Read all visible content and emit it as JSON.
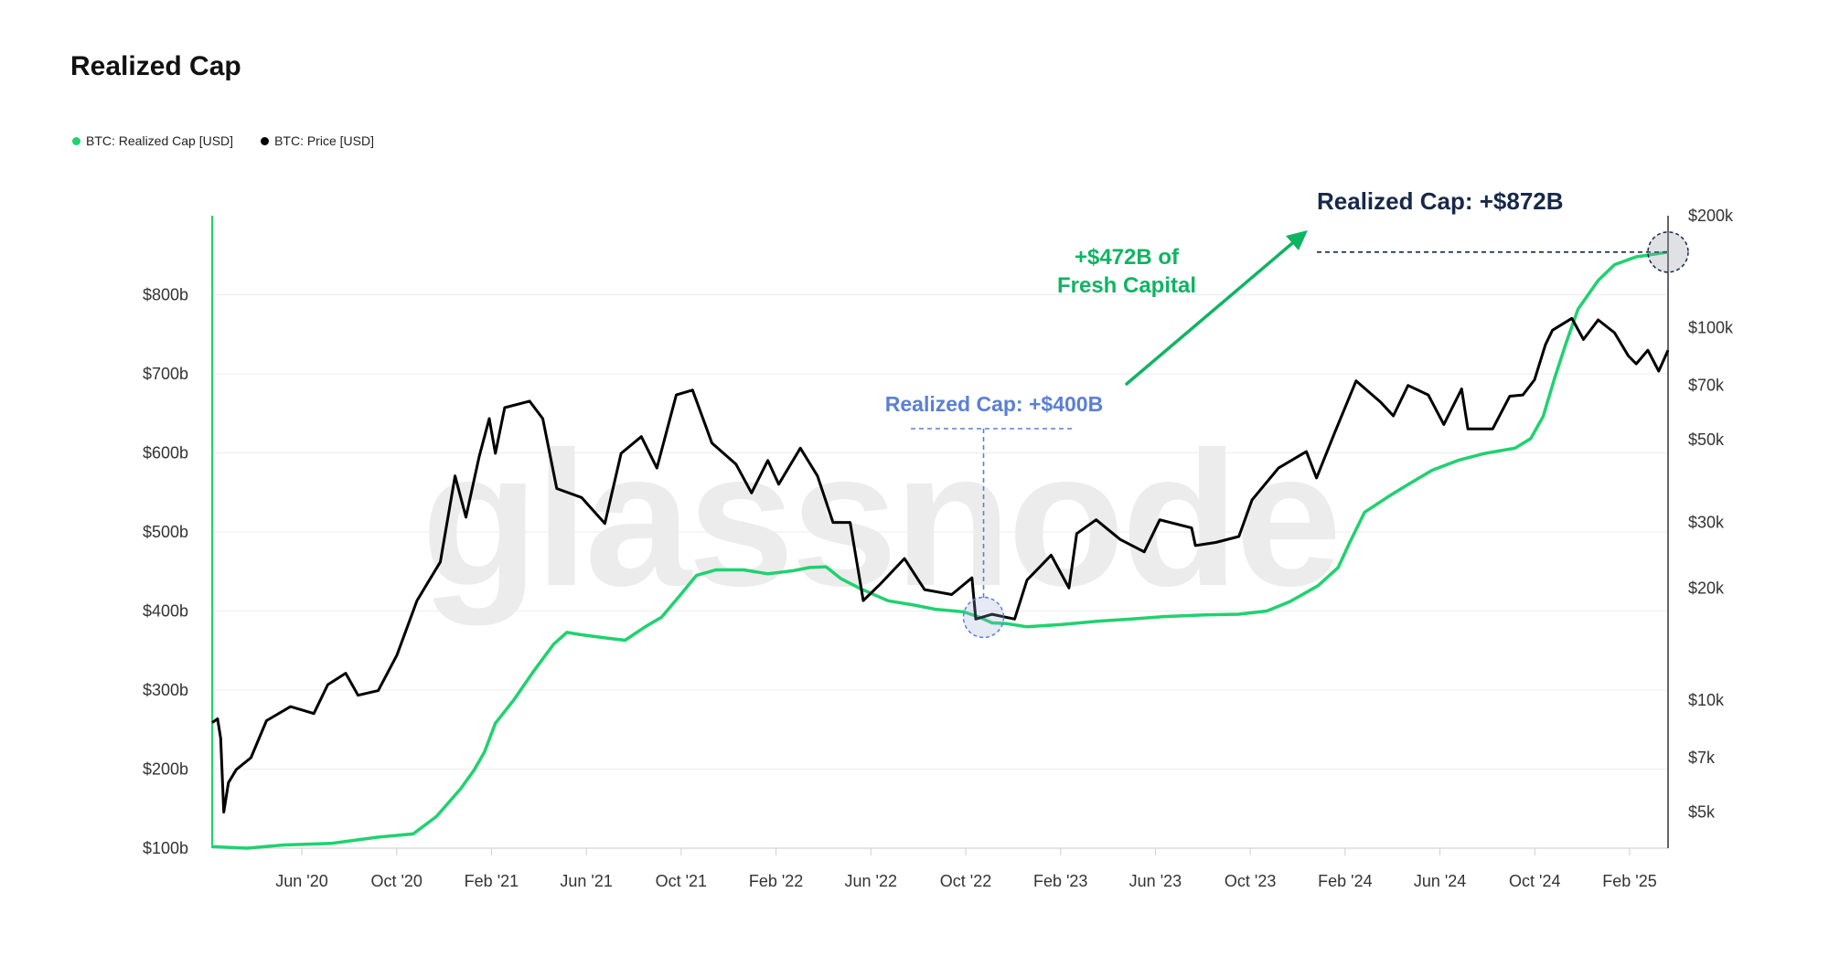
{
  "title": "Realized Cap",
  "legend": [
    {
      "label": "BTC: Realized Cap [USD]",
      "color": "#1fd26f"
    },
    {
      "label": "BTC: Price [USD]",
      "color": "#000000"
    }
  ],
  "watermark": "glassnode",
  "colors": {
    "realized_cap": "#1fd26f",
    "price": "#000000",
    "arrow": "#0fb462",
    "annotation_blue": "#5b7fd6",
    "annotation_navy": "#17284a"
  },
  "annotations": {
    "top": "Realized Cap: +$872B",
    "mid": "Realized Cap: +$400B",
    "fresh_line1": "+$472B of",
    "fresh_line2": "Fresh Capital"
  },
  "chart_data": {
    "type": "line",
    "title": "Realized Cap",
    "x_tick_labels": [
      "Jun '20",
      "Oct '20",
      "Feb '21",
      "Jun '21",
      "Oct '21",
      "Feb '22",
      "Jun '22",
      "Oct '22",
      "Feb '23",
      "Jun '23",
      "Oct '23",
      "Feb '24",
      "Jun '24",
      "Oct '24",
      "Feb '25"
    ],
    "x_range": [
      "2020-03-01",
      "2025-04-20"
    ],
    "y_left": {
      "scale": "linear",
      "range": [
        100,
        900
      ],
      "unit": "USD billions",
      "tick_values": [
        100,
        200,
        300,
        400,
        500,
        600,
        700,
        800
      ],
      "tick_labels": [
        "$100b",
        "$200b",
        "$300b",
        "$400b",
        "$500b",
        "$600b",
        "$700b",
        "$800b"
      ]
    },
    "y_right": {
      "scale": "log",
      "range": [
        4000,
        200000
      ],
      "tick_values": [
        5000,
        7000,
        10000,
        20000,
        30000,
        50000,
        70000,
        100000,
        200000
      ],
      "tick_labels": [
        "$5k",
        "$7k",
        "$10k",
        "$20k",
        "$30k",
        "$50k",
        "$70k",
        "$100k",
        "$200k"
      ]
    },
    "grid": true,
    "legend_position": "top-left",
    "series": [
      {
        "name": "BTC: Realized Cap [USD]",
        "axis": "left",
        "points": [
          [
            "2020-03-01",
            102
          ],
          [
            "2020-04-15",
            100
          ],
          [
            "2020-06-01",
            104
          ],
          [
            "2020-08-01",
            106
          ],
          [
            "2020-10-01",
            114
          ],
          [
            "2020-11-15",
            118
          ],
          [
            "2020-12-15",
            140
          ],
          [
            "2021-01-15",
            175
          ],
          [
            "2021-02-01",
            198
          ],
          [
            "2021-02-15",
            222
          ],
          [
            "2021-03-01",
            258
          ],
          [
            "2021-03-25",
            288
          ],
          [
            "2021-04-20",
            325
          ],
          [
            "2021-05-15",
            358
          ],
          [
            "2021-06-01",
            373
          ],
          [
            "2021-06-20",
            370
          ],
          [
            "2021-07-20",
            366
          ],
          [
            "2021-08-15",
            363
          ],
          [
            "2021-09-10",
            380
          ],
          [
            "2021-10-01",
            392
          ],
          [
            "2021-10-25",
            420
          ],
          [
            "2021-11-15",
            445
          ],
          [
            "2021-12-10",
            452
          ],
          [
            "2022-01-15",
            452
          ],
          [
            "2022-02-15",
            447
          ],
          [
            "2022-03-20",
            451
          ],
          [
            "2022-04-10",
            455
          ],
          [
            "2022-05-01",
            456
          ],
          [
            "2022-05-20",
            441
          ],
          [
            "2022-06-15",
            428
          ],
          [
            "2022-07-20",
            413
          ],
          [
            "2022-08-20",
            408
          ],
          [
            "2022-09-20",
            402
          ],
          [
            "2022-10-25",
            399
          ],
          [
            "2022-11-15",
            392
          ],
          [
            "2022-12-01",
            385
          ],
          [
            "2022-12-20",
            384
          ],
          [
            "2023-01-15",
            380
          ],
          [
            "2023-03-01",
            383
          ],
          [
            "2023-04-15",
            387
          ],
          [
            "2023-06-01",
            390
          ],
          [
            "2023-07-10",
            393
          ],
          [
            "2023-09-01",
            395
          ],
          [
            "2023-10-15",
            396
          ],
          [
            "2023-11-20",
            400
          ],
          [
            "2023-12-20",
            412
          ],
          [
            "2024-01-25",
            432
          ],
          [
            "2024-02-20",
            455
          ],
          [
            "2024-03-05",
            485
          ],
          [
            "2024-03-25",
            525
          ],
          [
            "2024-04-25",
            545
          ],
          [
            "2024-05-20",
            560
          ],
          [
            "2024-06-20",
            578
          ],
          [
            "2024-07-25",
            591
          ],
          [
            "2024-08-25",
            599
          ],
          [
            "2024-10-05",
            606
          ],
          [
            "2024-10-25",
            618
          ],
          [
            "2024-11-10",
            646
          ],
          [
            "2024-11-25",
            695
          ],
          [
            "2024-12-10",
            740
          ],
          [
            "2024-12-25",
            782
          ],
          [
            "2025-01-20",
            818
          ],
          [
            "2025-02-10",
            838
          ],
          [
            "2025-03-10",
            848
          ],
          [
            "2025-04-20",
            854
          ]
        ]
      },
      {
        "name": "BTC: Price [USD]",
        "axis": "right",
        "points": [
          [
            "2020-03-01",
            8700
          ],
          [
            "2020-03-08",
            8900
          ],
          [
            "2020-03-12",
            7900
          ],
          [
            "2020-03-16",
            5000
          ],
          [
            "2020-03-22",
            6000
          ],
          [
            "2020-04-01",
            6500
          ],
          [
            "2020-04-20",
            7000
          ],
          [
            "2020-05-10",
            8800
          ],
          [
            "2020-06-10",
            9600
          ],
          [
            "2020-07-10",
            9200
          ],
          [
            "2020-07-28",
            11000
          ],
          [
            "2020-08-20",
            11800
          ],
          [
            "2020-09-05",
            10300
          ],
          [
            "2020-10-01",
            10600
          ],
          [
            "2020-10-25",
            13200
          ],
          [
            "2020-11-20",
            18500
          ],
          [
            "2020-12-20",
            23500
          ],
          [
            "2021-01-08",
            40000
          ],
          [
            "2021-01-22",
            31000
          ],
          [
            "2021-02-08",
            45000
          ],
          [
            "2021-02-21",
            57000
          ],
          [
            "2021-03-01",
            46000
          ],
          [
            "2021-03-13",
            61000
          ],
          [
            "2021-04-14",
            63500
          ],
          [
            "2021-05-01",
            57000
          ],
          [
            "2021-05-19",
            37000
          ],
          [
            "2021-06-20",
            35000
          ],
          [
            "2021-07-20",
            29800
          ],
          [
            "2021-08-10",
            46000
          ],
          [
            "2021-09-05",
            51000
          ],
          [
            "2021-09-25",
            42000
          ],
          [
            "2021-10-20",
            66000
          ],
          [
            "2021-11-10",
            68000
          ],
          [
            "2021-12-05",
            49000
          ],
          [
            "2022-01-05",
            43000
          ],
          [
            "2022-01-25",
            36000
          ],
          [
            "2022-02-15",
            44000
          ],
          [
            "2022-03-01",
            38000
          ],
          [
            "2022-03-29",
            47500
          ],
          [
            "2022-04-20",
            40000
          ],
          [
            "2022-05-10",
            30000
          ],
          [
            "2022-06-01",
            30000
          ],
          [
            "2022-06-18",
            18500
          ],
          [
            "2022-07-10",
            20500
          ],
          [
            "2022-08-10",
            24000
          ],
          [
            "2022-09-05",
            19800
          ],
          [
            "2022-10-10",
            19200
          ],
          [
            "2022-11-05",
            21300
          ],
          [
            "2022-11-10",
            16500
          ],
          [
            "2022-12-01",
            17000
          ],
          [
            "2022-12-30",
            16500
          ],
          [
            "2023-01-15",
            21000
          ],
          [
            "2023-02-15",
            24500
          ],
          [
            "2023-03-10",
            20000
          ],
          [
            "2023-03-20",
            28000
          ],
          [
            "2023-04-14",
            30500
          ],
          [
            "2023-05-15",
            27000
          ],
          [
            "2023-06-15",
            25000
          ],
          [
            "2023-07-05",
            30500
          ],
          [
            "2023-08-15",
            29000
          ],
          [
            "2023-08-20",
            26000
          ],
          [
            "2023-09-15",
            26500
          ],
          [
            "2023-10-15",
            27500
          ],
          [
            "2023-11-01",
            34500
          ],
          [
            "2023-12-05",
            42000
          ],
          [
            "2024-01-10",
            46500
          ],
          [
            "2024-01-23",
            39500
          ],
          [
            "2024-02-15",
            52000
          ],
          [
            "2024-03-14",
            72000
          ],
          [
            "2024-04-15",
            63000
          ],
          [
            "2024-05-01",
            58000
          ],
          [
            "2024-05-20",
            70000
          ],
          [
            "2024-06-15",
            66000
          ],
          [
            "2024-07-05",
            55000
          ],
          [
            "2024-07-28",
            68500
          ],
          [
            "2024-08-05",
            53500
          ],
          [
            "2024-09-06",
            53500
          ],
          [
            "2024-09-28",
            65500
          ],
          [
            "2024-10-15",
            66000
          ],
          [
            "2024-10-30",
            72500
          ],
          [
            "2024-11-13",
            90000
          ],
          [
            "2024-11-22",
            98500
          ],
          [
            "2024-12-17",
            106000
          ],
          [
            "2025-01-01",
            93000
          ],
          [
            "2025-01-20",
            105000
          ],
          [
            "2025-02-10",
            97000
          ],
          [
            "2025-02-28",
            84000
          ],
          [
            "2025-03-10",
            80000
          ],
          [
            "2025-03-25",
            87000
          ],
          [
            "2025-04-08",
            76500
          ],
          [
            "2025-04-20",
            87000
          ]
        ]
      }
    ]
  }
}
